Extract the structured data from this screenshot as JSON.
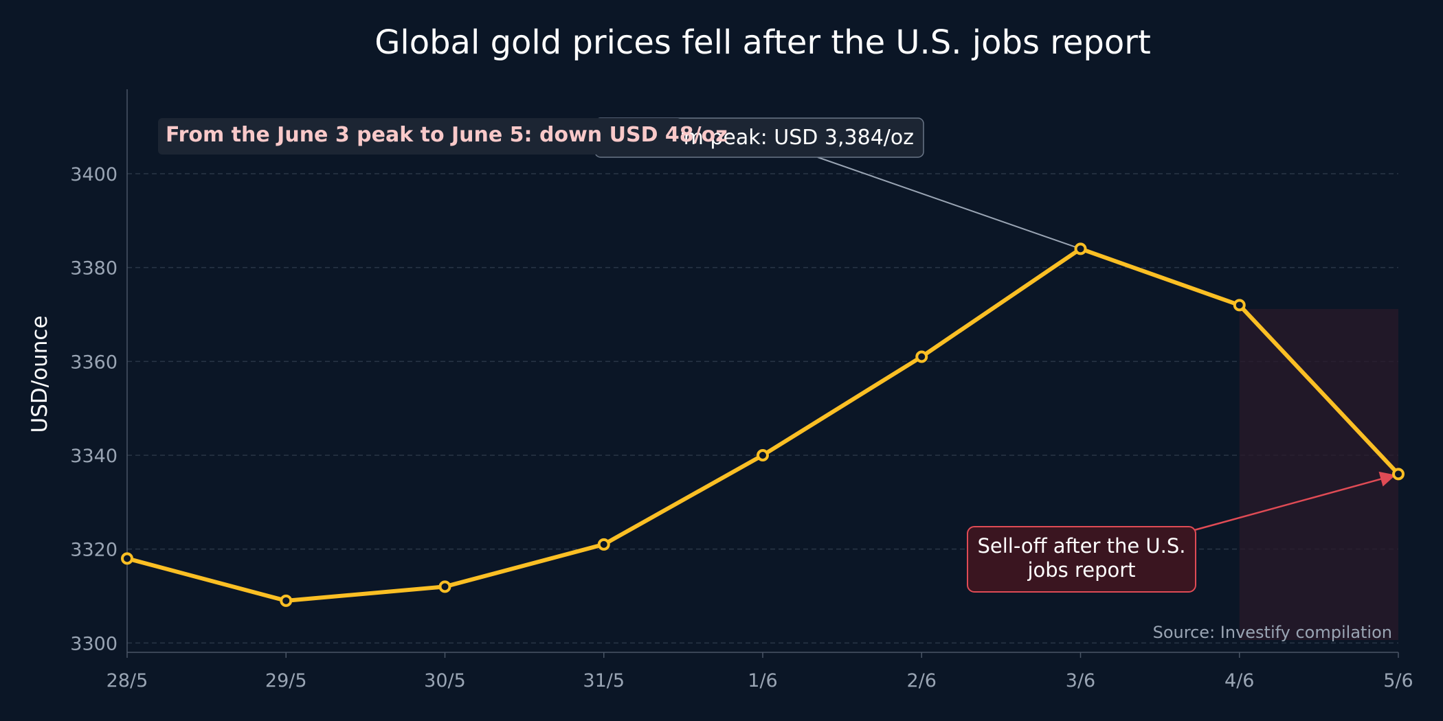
{
  "chart_data": {
    "type": "line",
    "title": "Global gold prices fell after the U.S. jobs report",
    "xlabel": "",
    "ylabel": "USD/ounce",
    "categories": [
      "28/5",
      "29/5",
      "30/5",
      "31/5",
      "1/6",
      "2/6",
      "3/6",
      "4/6",
      "5/6"
    ],
    "series": [
      {
        "name": "",
        "values": [
          3318,
          3309,
          3312,
          3321,
          3340,
          3361,
          3384,
          3372,
          3336
        ]
      }
    ],
    "ylim": [
      3298,
      3418
    ],
    "yticks": [
      3300,
      3320,
      3340,
      3360,
      3380,
      3400
    ],
    "grid": true,
    "line_color": "#fbbf24",
    "shaded_range": [
      "4/6",
      "5/6"
    ],
    "annotations": {
      "peak_label": "erm peak: USD 3,384/oz",
      "peak_category": "3/6",
      "selloff_label_line1": "Sell-off after the U.S.",
      "selloff_label_line2": "jobs report",
      "selloff_target_category": "5/6",
      "drop_summary": "From the June 3 peak to June 5: down USD 48/oz"
    },
    "source": "Source: Investify compilation"
  },
  "colors": {
    "background": "#0b1626",
    "line": "#fbbf24",
    "grid": "#2a3647",
    "axis_text": "#9aa5b4",
    "title": "#ffffff",
    "shade": "#2a1a2a",
    "arrow_red": "#e04b55",
    "callout_red_fill": "#3a1520",
    "callout_dark_fill": "#1c2533",
    "summary_text": "#f9c9c9"
  }
}
